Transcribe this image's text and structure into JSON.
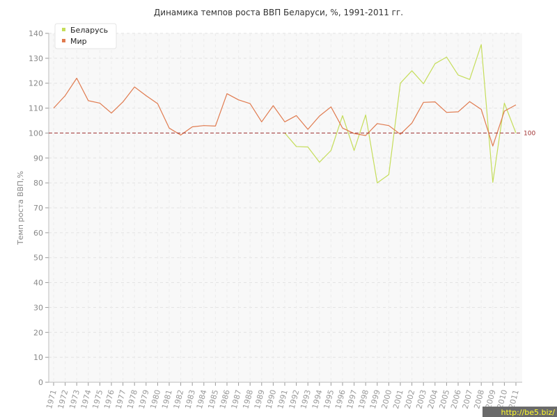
{
  "chart_data": {
    "type": "line",
    "title": "Динамика темпов роста ВВП Беларуси, %, 1991-2011 гг.",
    "xlabel": "",
    "ylabel": "Темп роста ВВП,%",
    "ylim": [
      0,
      140
    ],
    "yticks": [
      0,
      10,
      20,
      30,
      40,
      50,
      60,
      70,
      80,
      90,
      100,
      110,
      120,
      130,
      140
    ],
    "grid": true,
    "legend_position": "top-left",
    "categories": [
      "1971",
      "1972",
      "1973",
      "1974",
      "1975",
      "1976",
      "1977",
      "1978",
      "1979",
      "1980",
      "1981",
      "1982",
      "1983",
      "1984",
      "1985",
      "1986",
      "1987",
      "1988",
      "1989",
      "1990",
      "1991",
      "1992",
      "1993",
      "1994",
      "1995",
      "1996",
      "1997",
      "1998",
      "1999",
      "2000",
      "2001",
      "2002",
      "2003",
      "2004",
      "2005",
      "2006",
      "2007",
      "2008",
      "2009",
      "2010",
      "2011"
    ],
    "series": [
      {
        "name": "Беларусь",
        "color": "#c5dd5a",
        "values": [
          null,
          null,
          null,
          null,
          null,
          null,
          null,
          null,
          null,
          null,
          null,
          null,
          null,
          null,
          null,
          null,
          null,
          null,
          null,
          null,
          100,
          94.6,
          94.4,
          88.3,
          93.0,
          107.0,
          93.0,
          107.3,
          80.0,
          83.3,
          120.0,
          125.0,
          119.8,
          127.8,
          130.5,
          123.3,
          121.5,
          135.5,
          80.2,
          112.0,
          100.0
        ]
      },
      {
        "name": "Мир",
        "color": "#e07a4e",
        "values": [
          110.0,
          115.0,
          122.0,
          113.0,
          112.0,
          108.0,
          112.5,
          118.5,
          115.0,
          111.8,
          102.0,
          99.2,
          102.5,
          103.0,
          102.8,
          115.8,
          113.3,
          111.8,
          104.5,
          111.0,
          104.5,
          107.0,
          101.5,
          106.8,
          110.5,
          102.0,
          99.8,
          99.0,
          103.8,
          103.0,
          99.5,
          104.0,
          112.3,
          112.5,
          108.3,
          108.5,
          112.6,
          109.5,
          94.8,
          108.8,
          111.3
        ]
      }
    ],
    "reference_line": {
      "value": 100,
      "label": "100",
      "color": "#a03030"
    }
  },
  "watermark": "http://be5.biz/"
}
